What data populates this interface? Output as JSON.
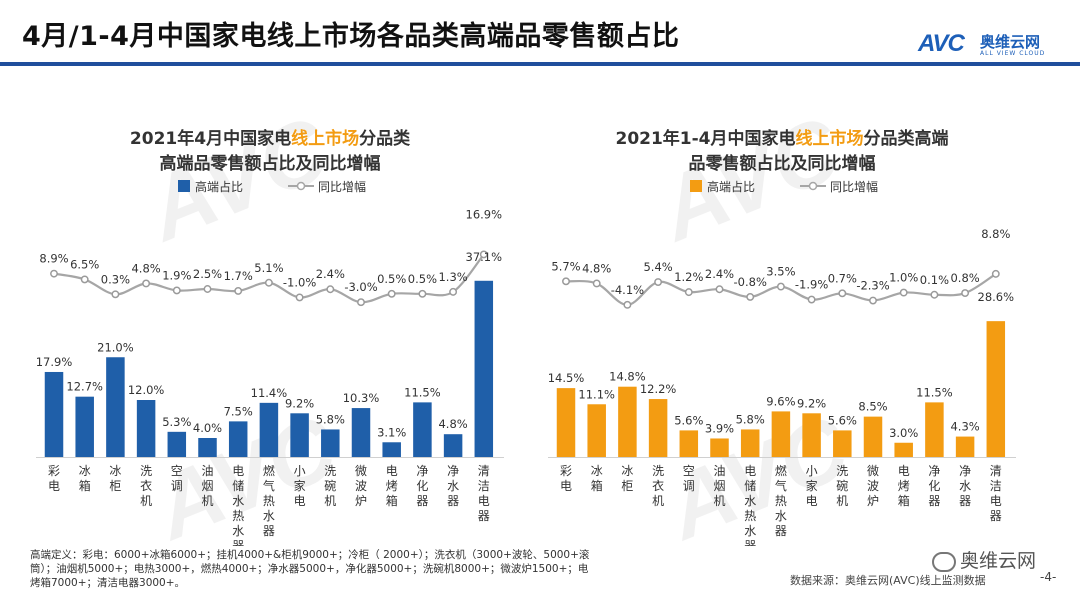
{
  "page": {
    "title": "4月/1-4月中国家电线上市场各品类高端品零售额占比",
    "logo": {
      "brand": "AVC",
      "name_cn": "奥维云网",
      "name_en": "ALL VIEW CLOUD"
    },
    "footnote": "高端定义：彩电：6000+冰箱6000+；挂机4000+&柜机9000+；冷柜（ 2000+）；洗衣机（3000+波轮、5000+滚筒）；油烟机5000+；电热3000+，燃热4000+；净水器5000+，净化器5000+；洗碗机8000+；微波炉1500+；电烤箱7000+；清洁电器3000+。",
    "source": "数据来源：奥维云网(AVC)线上监测数据",
    "wechat": "奥维云网",
    "page_number": "-4-",
    "watermark": "AVC"
  },
  "chart_data": [
    {
      "type": "bar+line",
      "title_lines": [
        [
          "2021年4月中国家电",
          "线上市场",
          "分品类"
        ],
        [
          "高端品零售额占比及同比增幅",
          "",
          ""
        ]
      ],
      "bar_color": "#1f5fa9",
      "line_color": "#a6a6a6",
      "legend": {
        "bar": "高端占比",
        "line": "同比增幅"
      },
      "categories": [
        "彩电",
        "冰箱",
        "冰柜",
        "洗衣机",
        "空调",
        "油烟机",
        "电储水热水器",
        "燃气热水器",
        "小家电",
        "洗碗机",
        "微波炉",
        "电烤箱",
        "净化器",
        "净水器",
        "清洁电器"
      ],
      "bar_values": [
        17.9,
        12.7,
        21.0,
        12.0,
        5.3,
        4.0,
        7.5,
        11.4,
        9.2,
        5.8,
        10.3,
        3.1,
        11.5,
        4.8,
        37.1
      ],
      "bar_labels": [
        "17.9%",
        "12.7%",
        "21.0%",
        "12.0%",
        "5.3%",
        "4.0%",
        "7.5%",
        "11.4%",
        "9.2%",
        "5.8%",
        "10.3%",
        "3.1%",
        "11.5%",
        "4.8%",
        "37.1%"
      ],
      "line_values": [
        8.9,
        6.5,
        0.3,
        4.8,
        1.9,
        2.5,
        1.7,
        5.1,
        -1.0,
        2.4,
        -3.0,
        0.5,
        0.5,
        1.3,
        16.9
      ],
      "line_labels": [
        "8.9%",
        "6.5%",
        "0.3%",
        "4.8%",
        "1.9%",
        "2.5%",
        "1.7%",
        "5.1%",
        "-1.0%",
        "2.4%",
        "-3.0%",
        "0.5%",
        "0.5%",
        "1.3%",
        "16.9%"
      ]
    },
    {
      "type": "bar+line",
      "title_lines": [
        [
          "2021年1-4月中国家电",
          "线上市场",
          "分品类高端"
        ],
        [
          "品零售额占比及同比增幅",
          "",
          ""
        ]
      ],
      "bar_color": "#f39c12",
      "line_color": "#a6a6a6",
      "legend": {
        "bar": "高端占比",
        "line": "同比增幅"
      },
      "categories": [
        "彩电",
        "冰箱",
        "冰柜",
        "洗衣机",
        "空调",
        "油烟机",
        "电储水热水器",
        "燃气热水器",
        "小家电",
        "洗碗机",
        "微波炉",
        "电烤箱",
        "净化器",
        "净水器",
        "清洁电器"
      ],
      "bar_values": [
        14.5,
        11.1,
        14.8,
        12.2,
        5.6,
        3.9,
        5.8,
        9.6,
        9.2,
        5.6,
        8.5,
        3.0,
        11.5,
        4.3,
        28.6
      ],
      "bar_labels": [
        "14.5%",
        "11.1%",
        "14.8%",
        "12.2%",
        "5.6%",
        "3.9%",
        "5.8%",
        "9.6%",
        "9.2%",
        "5.6%",
        "8.5%",
        "3.0%",
        "11.5%",
        "4.3%",
        "28.6%"
      ],
      "line_values": [
        5.7,
        4.8,
        -4.1,
        5.4,
        1.2,
        2.4,
        -0.8,
        3.5,
        -1.9,
        0.7,
        -2.3,
        1.0,
        0.1,
        0.8,
        8.8
      ],
      "line_labels": [
        "5.7%",
        "4.8%",
        "-4.1%",
        "5.4%",
        "1.2%",
        "2.4%",
        "-0.8%",
        "3.5%",
        "-1.9%",
        "0.7%",
        "-2.3%",
        "1.0%",
        "0.1%",
        "0.8%",
        "8.8%"
      ]
    }
  ]
}
